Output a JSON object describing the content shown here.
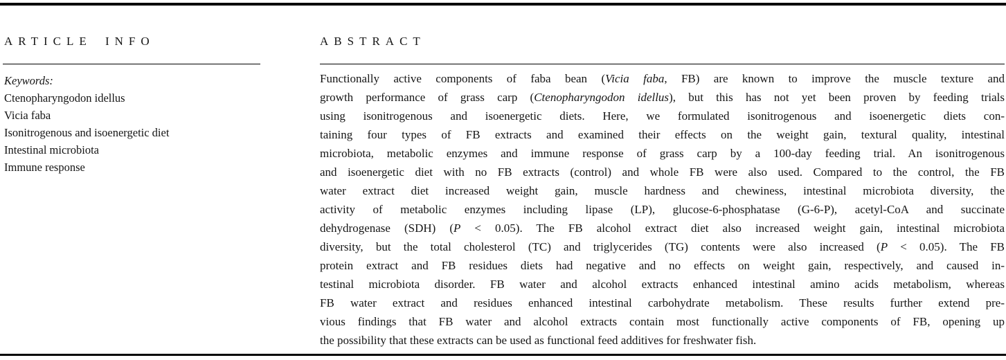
{
  "page": {
    "background_color": "#ffffff",
    "text_color": "#151515",
    "rule_color": "#000000"
  },
  "article_info": {
    "heading": "ARTICLE INFO",
    "keywords_label": "Keywords:",
    "keywords": [
      "Ctenopharyngodon idellus",
      "Vicia faba",
      "Isonitrogenous and isoenergetic diet",
      "Intestinal microbiota",
      "Immune response"
    ]
  },
  "abstract": {
    "heading": "ABSTRACT",
    "lines": [
      [
        {
          "t": "Functionally active components of faba bean ("
        },
        {
          "t": "Vicia faba",
          "i": true
        },
        {
          "t": ", FB) are known to improve the muscle texture and"
        }
      ],
      [
        {
          "t": "growth performance of grass carp ("
        },
        {
          "t": "Ctenopharyngodon idellus",
          "i": true
        },
        {
          "t": "), but this has not yet been proven by feeding trials"
        }
      ],
      [
        {
          "t": "using isonitrogenous and isoenergetic diets. Here, we formulated isonitrogenous and isoenergetic diets con-"
        }
      ],
      [
        {
          "t": "taining four types of FB extracts and examined their effects on the weight gain, textural quality, intestinal"
        }
      ],
      [
        {
          "t": "microbiota, metabolic enzymes and immune response of grass carp by a 100-day feeding trial. An isonitrogenous"
        }
      ],
      [
        {
          "t": "and isoenergetic diet with no FB extracts (control) and whole FB were also used. Compared to the control, the FB"
        }
      ],
      [
        {
          "t": "water extract diet increased weight gain, muscle hardness and chewiness, intestinal microbiota diversity, the"
        }
      ],
      [
        {
          "t": "activity of metabolic enzymes including lipase (LP), glucose-6-phosphatase (G-6-P), acetyl-CoA and succinate"
        }
      ],
      [
        {
          "t": "dehydrogenase (SDH) ("
        },
        {
          "t": "P",
          "i": true
        },
        {
          "t": " < 0.05). The FB alcohol extract diet also increased weight gain, intestinal microbiota"
        }
      ],
      [
        {
          "t": "diversity, but the total cholesterol (TC) and triglycerides (TG) contents were also increased ("
        },
        {
          "t": "P",
          "i": true
        },
        {
          "t": " < 0.05). The FB"
        }
      ],
      [
        {
          "t": "protein extract and FB residues diets had negative and no effects on weight gain, respectively, and caused in-"
        }
      ],
      [
        {
          "t": "testinal microbiota disorder. FB water and alcohol extracts enhanced intestinal amino acids metabolism, whereas"
        }
      ],
      [
        {
          "t": "FB water extract and residues enhanced intestinal carbohydrate metabolism. These results further extend pre-"
        }
      ],
      [
        {
          "t": "vious findings that FB water and alcohol extracts contain most functionally active components of FB, opening up"
        }
      ],
      [
        {
          "t": "the possibility that these extracts can be used as functional feed additives for freshwater fish."
        }
      ]
    ]
  }
}
